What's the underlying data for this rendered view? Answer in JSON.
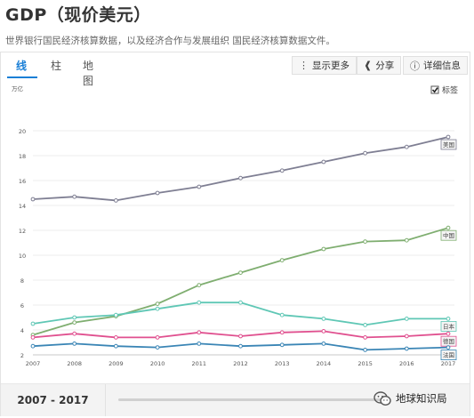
{
  "header": {
    "title": "GDP（现价美元）",
    "subtitle": "世界银行国民经济核算数据，以及经济合作与发展组织 国民经济核算数据文件。"
  },
  "tabs": [
    {
      "label": "线",
      "active": true
    },
    {
      "label": "柱",
      "active": false
    },
    {
      "label": "地图",
      "active": false
    }
  ],
  "toolbar": {
    "show_more": "显示更多",
    "share": "分享",
    "details": "详细信息",
    "show_more_icon": "vertical-dots-icon",
    "share_icon": "share-icon",
    "details_icon": "info-icon"
  },
  "chart_data": {
    "type": "line",
    "title": "",
    "xlabel": "",
    "ylabel": "万亿",
    "x": [
      "2007",
      "2008",
      "2009",
      "2010",
      "2011",
      "2012",
      "2013",
      "2014",
      "2015",
      "2016",
      "2017"
    ],
    "ylim": [
      2,
      20
    ],
    "yticks": [
      2,
      4,
      6,
      8,
      10,
      12,
      14,
      16,
      18,
      20
    ],
    "grid": true,
    "legend_toggle": {
      "label": "标签",
      "checked": true
    },
    "series": [
      {
        "name": "美国",
        "color": "#7f7f93",
        "values": [
          14.5,
          14.7,
          14.4,
          15.0,
          15.5,
          16.2,
          16.8,
          17.5,
          18.2,
          18.7,
          19.5
        ]
      },
      {
        "name": "中国",
        "color": "#7fae70",
        "values": [
          3.6,
          4.6,
          5.1,
          6.1,
          7.6,
          8.6,
          9.6,
          10.5,
          11.1,
          11.2,
          12.2
        ]
      },
      {
        "name": "日本",
        "color": "#5fc7b5",
        "values": [
          4.5,
          5.0,
          5.2,
          5.7,
          6.2,
          6.2,
          5.2,
          4.9,
          4.4,
          4.9,
          4.9
        ]
      },
      {
        "name": "德国",
        "color": "#e0508f",
        "values": [
          3.4,
          3.7,
          3.4,
          3.4,
          3.8,
          3.5,
          3.8,
          3.9,
          3.4,
          3.5,
          3.7
        ]
      },
      {
        "name": "法国",
        "color": "#3a85b5",
        "values": [
          2.7,
          2.9,
          2.7,
          2.6,
          2.9,
          2.7,
          2.8,
          2.9,
          2.4,
          2.5,
          2.6
        ]
      }
    ]
  },
  "footer": {
    "range": "2007 - 2017"
  },
  "watermark": {
    "text": "地球知识局"
  }
}
